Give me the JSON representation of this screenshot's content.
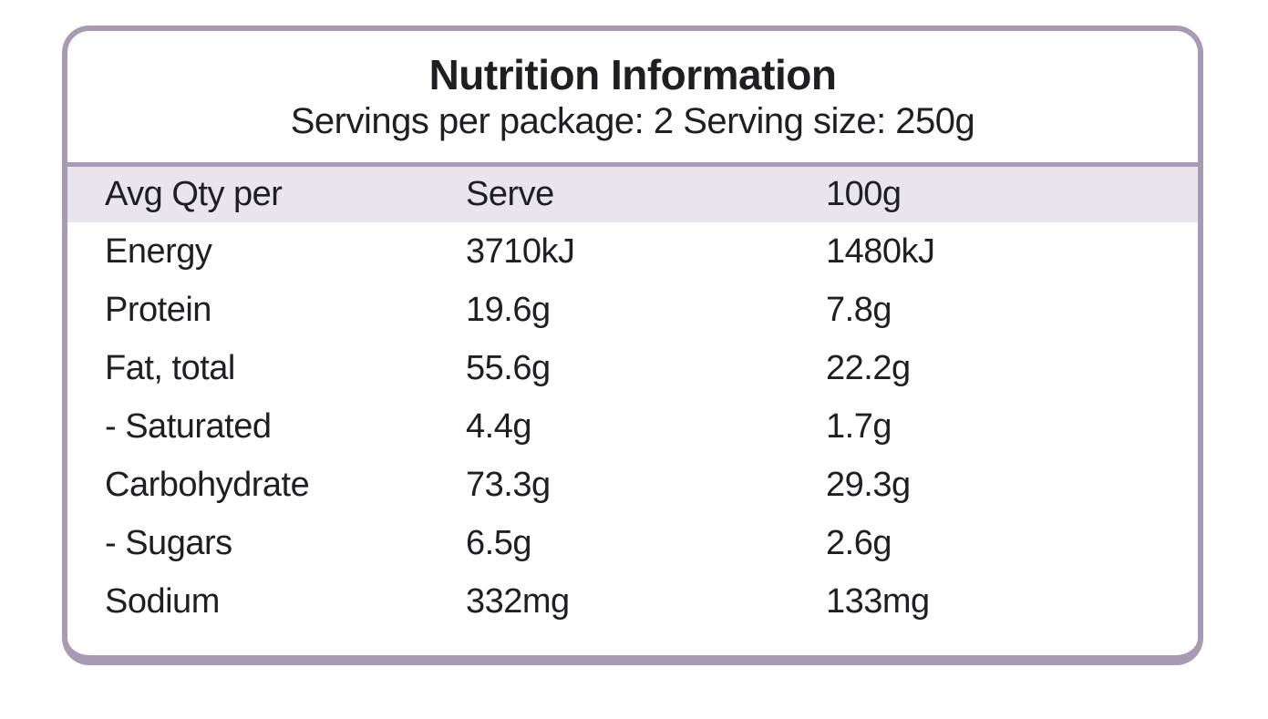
{
  "label": {
    "title": "Nutrition Information",
    "serving_info": "Servings per package: 2 Serving size: 250g",
    "columns": [
      "Avg Qty per",
      "Serve",
      "100g"
    ],
    "rows": [
      {
        "name": "Energy",
        "serve": "3710kJ",
        "per100g": "1480kJ"
      },
      {
        "name": "Protein",
        "serve": "19.6g",
        "per100g": "7.8g"
      },
      {
        "name": "Fat, total",
        "serve": "55.6g",
        "per100g": "22.2g"
      },
      {
        "name": "- Saturated",
        "serve": "4.4g",
        "per100g": "1.7g"
      },
      {
        "name": "Carbohydrate",
        "serve": "73.3g",
        "per100g": "29.3g"
      },
      {
        "name": "- Sugars",
        "serve": "6.5g",
        "per100g": "2.6g"
      },
      {
        "name": "Sodium",
        "serve": "332mg",
        "per100g": "133mg"
      }
    ],
    "colors": {
      "border": "#a79ab2",
      "header_band": "#e8e5ed",
      "text": "#1f1f23",
      "background": "#ffffff"
    }
  }
}
